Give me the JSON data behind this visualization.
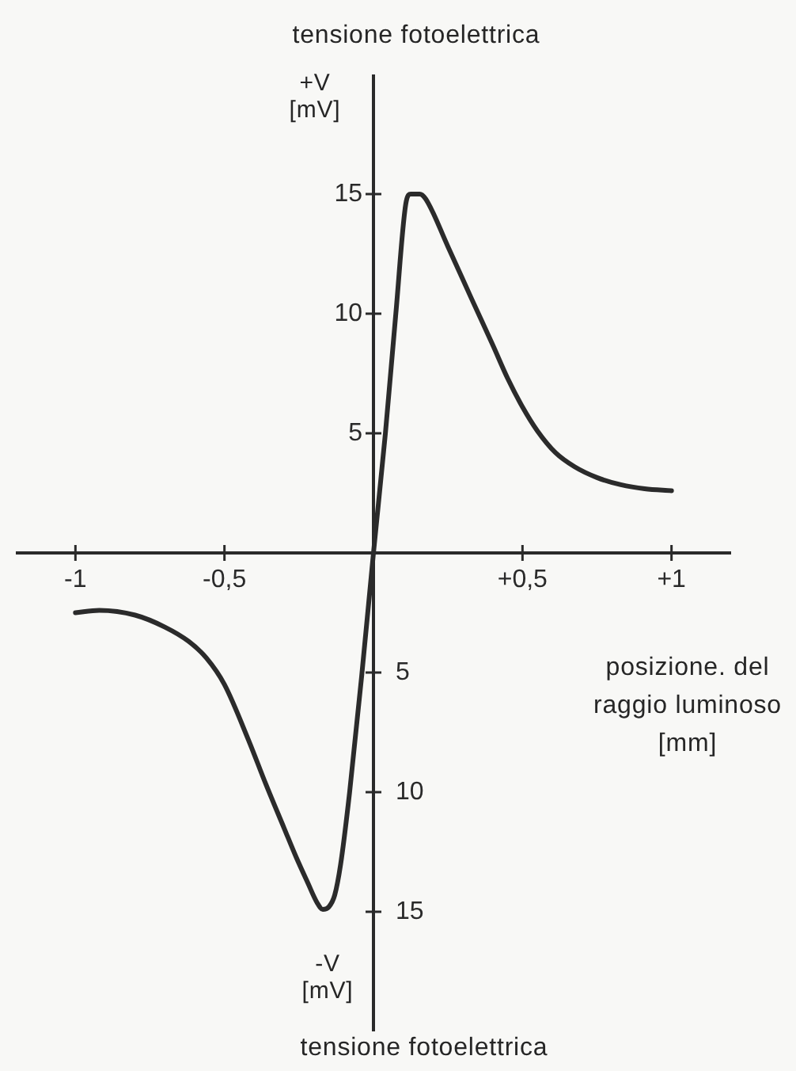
{
  "chart_data": {
    "type": "line",
    "title": "tensione fotoelettrica",
    "xlabel": "posizione. del raggio luminoso [mm]",
    "ylabel": "+V [mV]",
    "annotations": [
      "-V [mV]",
      "tensione fotoelettrica"
    ],
    "x": [
      -1,
      -0.92,
      -0.8,
      -0.7,
      -0.62,
      -0.56,
      -0.5,
      -0.42,
      -0.36,
      -0.3,
      -0.26,
      -0.22,
      -0.19,
      -0.17,
      -0.15,
      -0.13,
      -0.11,
      -0.08,
      -0.04,
      0,
      0.04,
      0.075,
      0.11,
      0.125,
      0.155,
      0.175,
      0.25,
      0.33,
      0.4,
      0.45,
      0.5,
      0.55,
      0.61,
      0.675,
      0.75,
      0.83,
      0.91,
      1
    ],
    "values": [
      -2.5,
      -2.4,
      -2.6,
      -3.1,
      -3.7,
      -4.4,
      -5.5,
      -7.8,
      -9.7,
      -11.5,
      -12.7,
      -13.8,
      -14.6,
      -14.9,
      -14.8,
      -14.3,
      -13,
      -10,
      -5.2,
      0,
      5,
      10,
      14.7,
      15,
      15,
      14.8,
      12.8,
      10.6,
      8.7,
      7.3,
      6.1,
      5.1,
      4.2,
      3.6,
      3.15,
      2.85,
      2.68,
      2.6
    ],
    "color": "#2b2b2b",
    "marker": "none",
    "xlim": [
      -1.2,
      1.2
    ],
    "xticks": [
      -1,
      {
        "value": -0.5,
        "label": "-0,5"
      },
      {
        "value": 0.5,
        "label": "+0,5"
      },
      {
        "value": 1,
        "label": "+1"
      }
    ],
    "ylim": [
      -20,
      20
    ],
    "yticks": [
      5,
      10,
      15
    ],
    "y2lim": [
      -20,
      20
    ],
    "y2ticks": [
      {
        "value": -15,
        "label": "15"
      },
      {
        "value": -10,
        "label": "10"
      },
      {
        "value": -5,
        "label": "5"
      }
    ]
  }
}
